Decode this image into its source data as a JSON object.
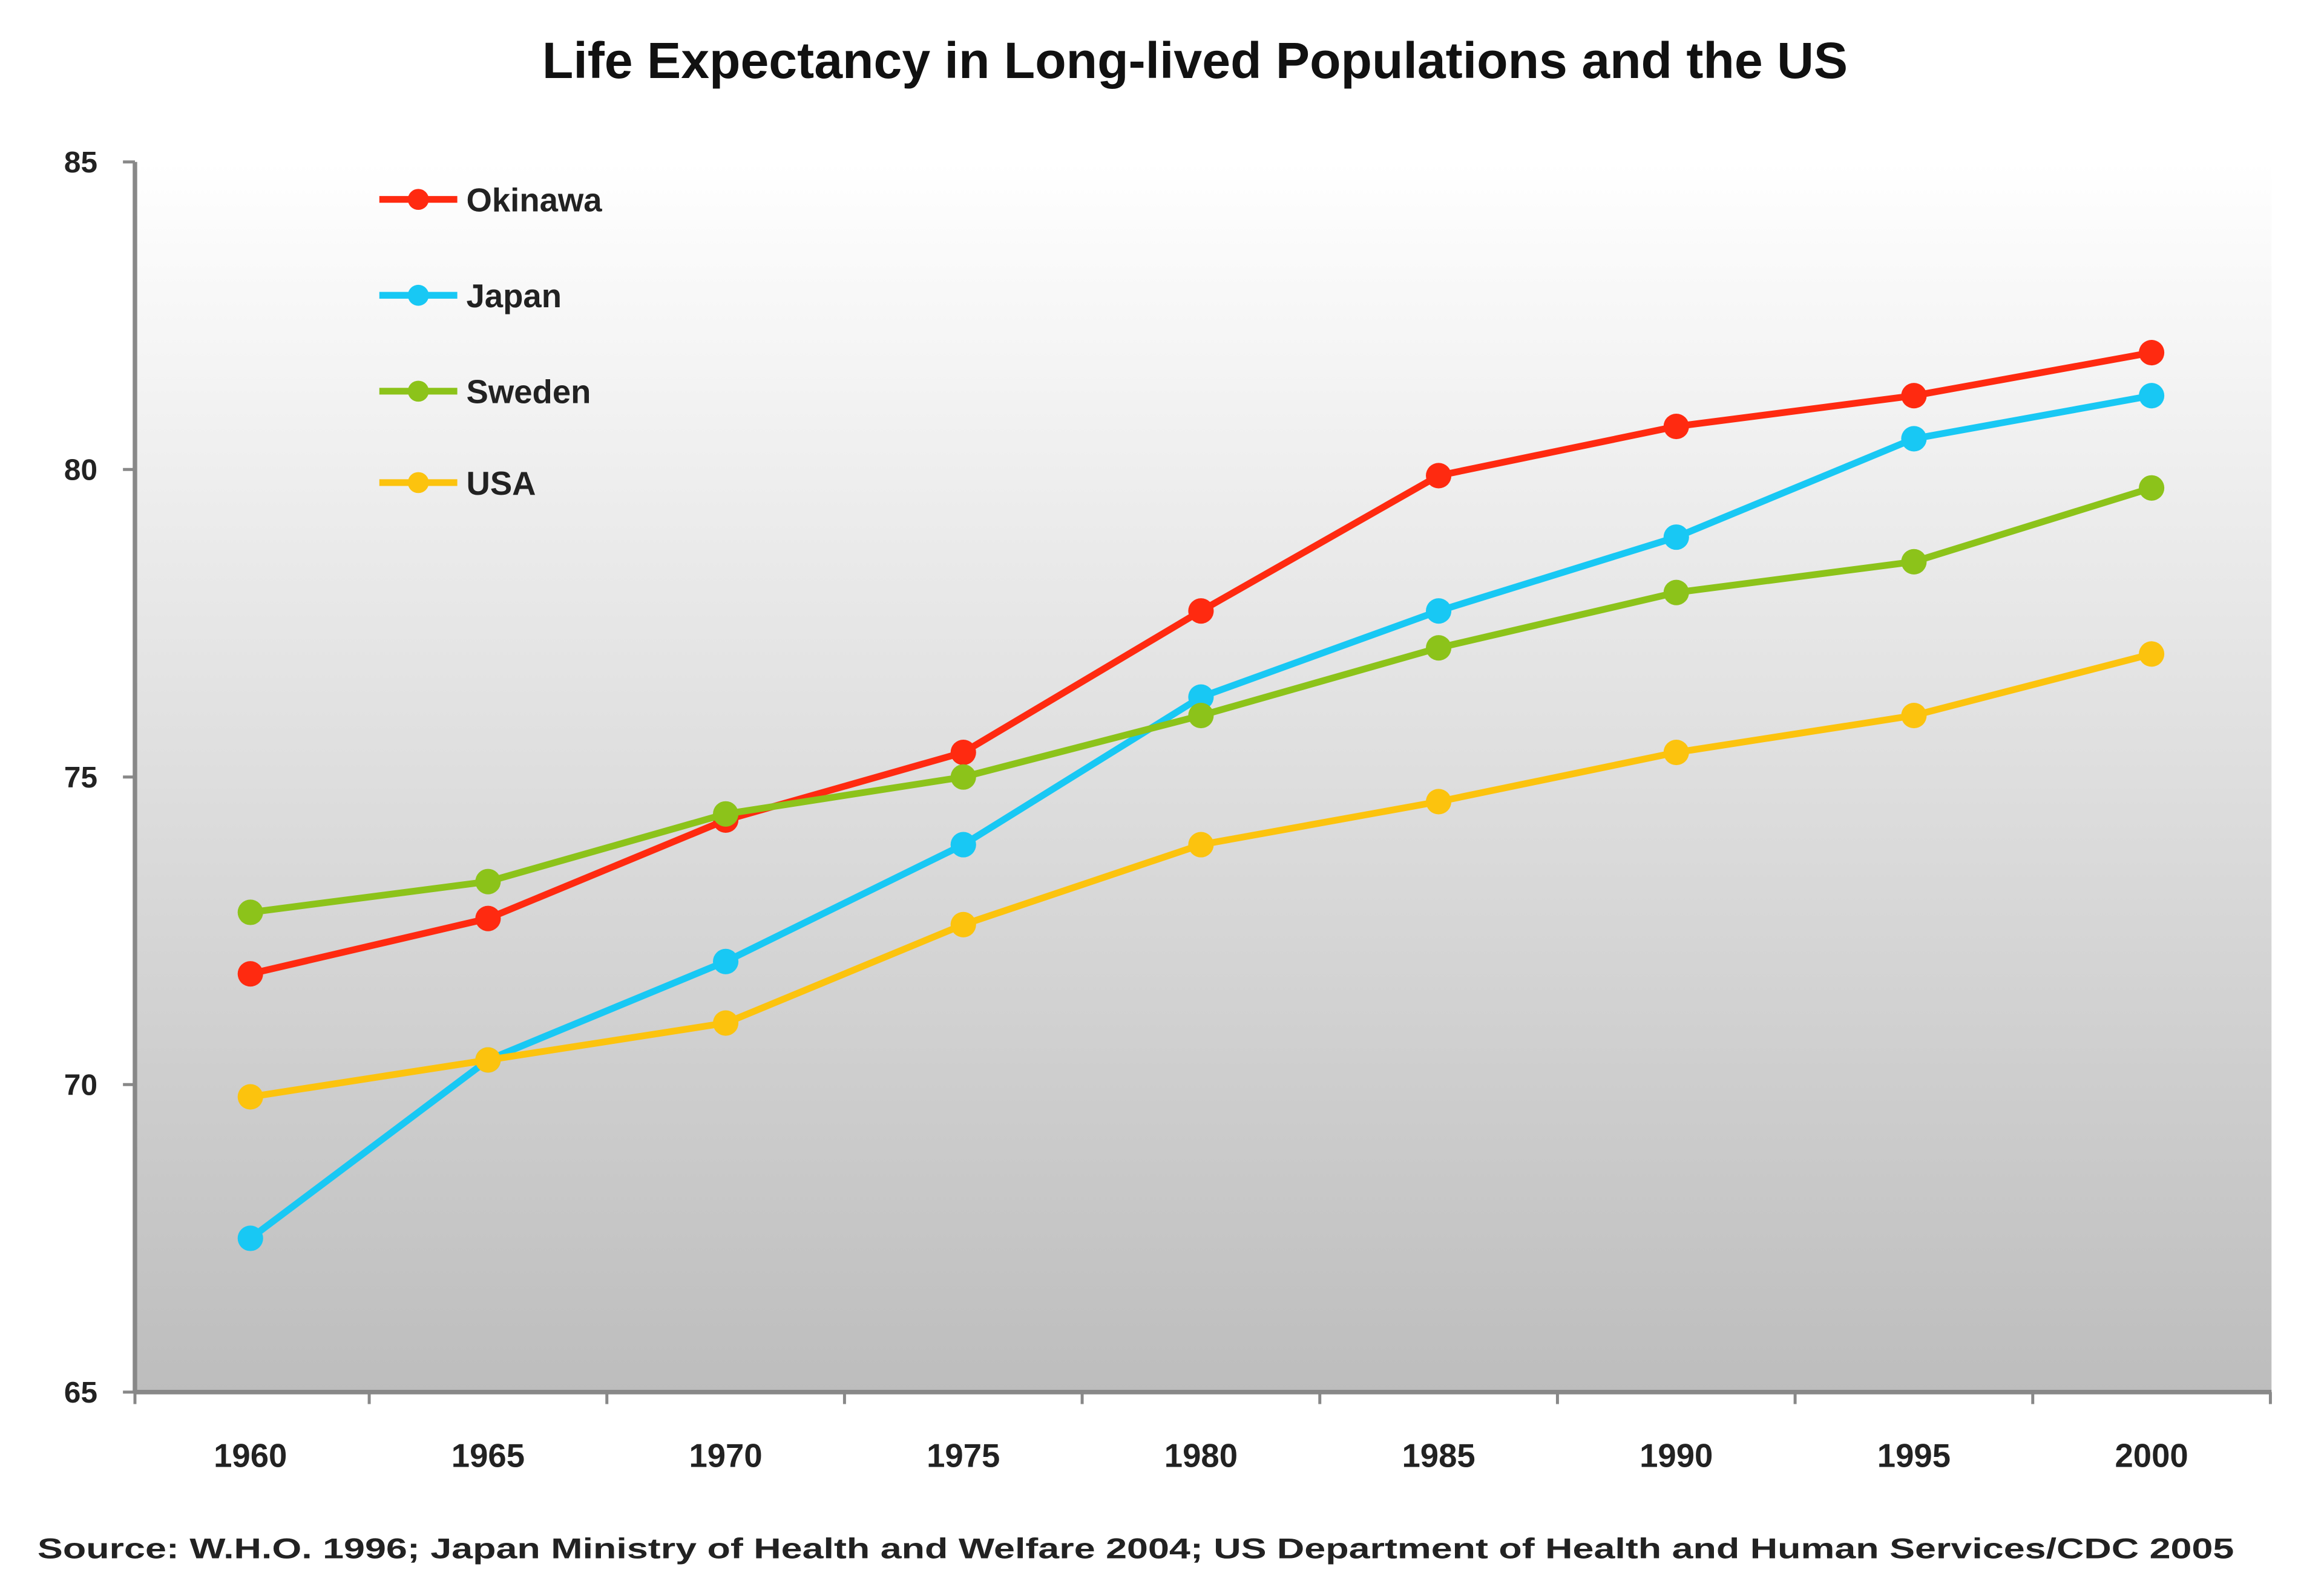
{
  "chart_data": {
    "type": "line",
    "title": "Life Expectancy in Long-lived Populations and the US",
    "categories": [
      "1960",
      "1965",
      "1970",
      "1975",
      "1980",
      "1985",
      "1990",
      "1995",
      "2000"
    ],
    "ylim": [
      65,
      85
    ],
    "yticks": [
      "65",
      "70",
      "75",
      "80",
      "85"
    ],
    "grid": false,
    "legend_position": "top-left",
    "series": [
      {
        "name": "Okinawa",
        "color": "#ff2a10",
        "values": [
          71.8,
          72.7,
          74.3,
          75.4,
          77.7,
          79.9,
          80.7,
          81.2,
          81.9
        ]
      },
      {
        "name": "Japan",
        "color": "#18c8f4",
        "values": [
          67.5,
          70.4,
          72.0,
          73.9,
          76.3,
          77.7,
          78.9,
          80.5,
          81.2
        ]
      },
      {
        "name": "Sweden",
        "color": "#8cc31a",
        "values": [
          72.8,
          73.3,
          74.4,
          75.0,
          76.0,
          77.1,
          78.0,
          78.5,
          79.7
        ]
      },
      {
        "name": "USA",
        "color": "#fcc30e",
        "values": [
          69.8,
          70.4,
          71.0,
          72.6,
          73.9,
          74.6,
          75.4,
          76.0,
          77.0
        ]
      }
    ],
    "source": "Source: W.H.O. 1996; Japan Ministry of Health and Welfare 2004; US Department of Health and Human Services/CDC 2005"
  }
}
